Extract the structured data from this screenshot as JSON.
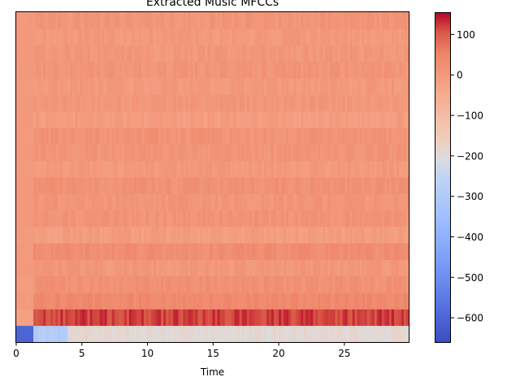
{
  "chart_data": {
    "type": "heatmap",
    "title": "Extracted Music MFCCs",
    "xlabel": "Time",
    "ylabel": "",
    "xlim": [
      0,
      29.9
    ],
    "xticks": [
      0,
      5,
      10,
      15,
      20,
      25
    ],
    "xtick_labels": [
      "0",
      "5",
      "10",
      "15",
      "20",
      "25"
    ],
    "n_coefficients": 20,
    "colormap": "coolwarm",
    "color_range": [
      -660,
      155
    ],
    "colorbar_ticks": [
      100,
      0,
      -100,
      -200,
      -300,
      -400,
      -500,
      -600
    ],
    "colorbar_tick_labels": [
      "100",
      "0",
      "−100",
      "−200",
      "−300",
      "−400",
      "−500",
      "−600"
    ],
    "coefficient_means": [
      -190,
      120,
      40,
      20,
      5,
      30,
      -10,
      15,
      10,
      20,
      0,
      10,
      15,
      -10,
      5,
      0,
      10,
      5,
      0,
      10
    ],
    "onset_time": 1.4,
    "onset_values": [
      -600,
      -20,
      -5,
      -10,
      0,
      0,
      -5,
      0,
      0,
      0,
      -5,
      0,
      0,
      0,
      0,
      0,
      0,
      0,
      0,
      0
    ],
    "colors": {
      "cold": "#3b4cc0",
      "neutral": "#dddddd",
      "hot": "#b40426"
    }
  }
}
